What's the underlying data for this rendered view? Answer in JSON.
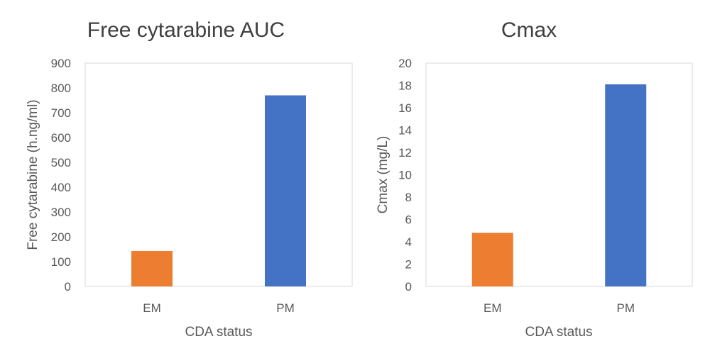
{
  "chart_data": [
    {
      "type": "bar",
      "title": "Free cytarabine AUC",
      "xlabel": "CDA status",
      "ylabel": "Free cytarabine (h.ng/ml)",
      "categories": [
        "EM",
        "PM"
      ],
      "values": [
        143,
        770
      ],
      "colors": [
        "#ED7D31",
        "#4472C4"
      ],
      "ylim": [
        0,
        900
      ],
      "yticks": [
        0,
        100,
        200,
        300,
        400,
        500,
        600,
        700,
        800,
        900
      ],
      "grid": false
    },
    {
      "type": "bar",
      "title": "Cmax",
      "xlabel": "CDA status",
      "ylabel": "Cmax (mg/L)",
      "categories": [
        "EM",
        "PM"
      ],
      "values": [
        4.8,
        18.1
      ],
      "colors": [
        "#ED7D31",
        "#4472C4"
      ],
      "ylim": [
        0,
        20
      ],
      "yticks": [
        0,
        2,
        4,
        6,
        8,
        10,
        12,
        14,
        16,
        18,
        20
      ],
      "grid": false
    }
  ]
}
